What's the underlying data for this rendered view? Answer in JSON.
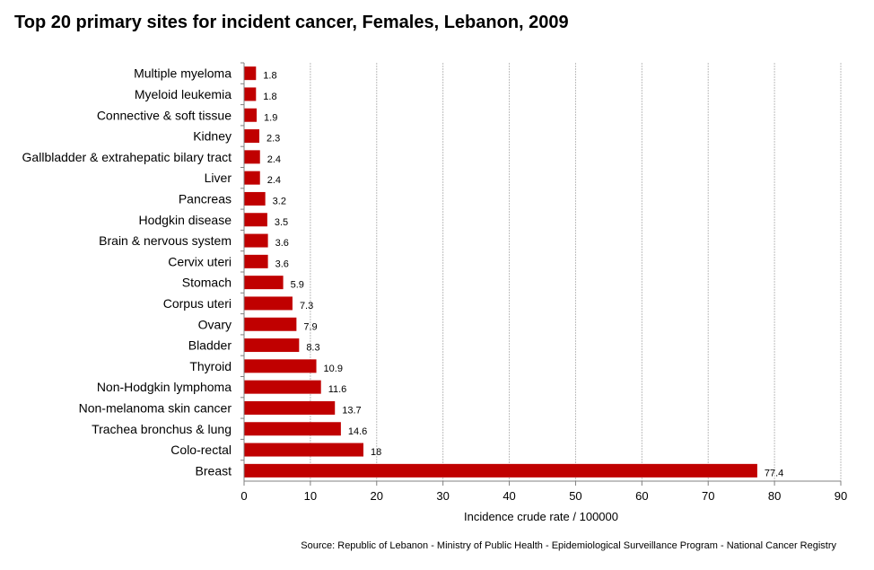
{
  "chart_data": {
    "type": "bar",
    "orientation": "horizontal",
    "title": "Top 20 primary sites for incident cancer, Females, Lebanon, 2009",
    "xlabel": "Incidence crude rate / 100000",
    "ylabel": "",
    "xlim": [
      0,
      90
    ],
    "xticks": [
      "0",
      "10",
      "20",
      "30",
      "40",
      "50",
      "60",
      "70",
      "80",
      "90"
    ],
    "grid": "vertical",
    "legend": "none",
    "bar_color": "#c00000",
    "categories": [
      "Multiple myeloma",
      "Myeloid leukemia",
      "Connective & soft tissue",
      "Kidney",
      "Gallbladder & extrahepatic bilary tract",
      "Liver",
      "Pancreas",
      "Hodgkin disease",
      "Brain & nervous system",
      "Cervix uteri",
      "Stomach",
      "Corpus uteri",
      "Ovary",
      "Bladder",
      "Thyroid",
      "Non-Hodgkin lymphoma",
      "Non-melanoma skin cancer",
      "Trachea bronchus & lung",
      "Colo-rectal",
      "Breast"
    ],
    "values": [
      1.8,
      1.8,
      1.9,
      2.3,
      2.4,
      2.4,
      3.2,
      3.5,
      3.6,
      3.6,
      5.9,
      7.3,
      7.9,
      8.3,
      10.9,
      11.6,
      13.7,
      14.6,
      18,
      77.4
    ],
    "value_labels": [
      "1.8",
      "1.8",
      "1.9",
      "2.3",
      "2.4",
      "2.4",
      "3.2",
      "3.5",
      "3.6",
      "3.6",
      "5.9",
      "7.3",
      "7.9",
      "8.3",
      "10.9",
      "11.6",
      "13.7",
      "14.6",
      "18",
      "77.4"
    ],
    "source": "Source:  Republic of Lebanon  - Ministry of Public Health - Epidemiological Surveillance Program - National Cancer Registry"
  }
}
